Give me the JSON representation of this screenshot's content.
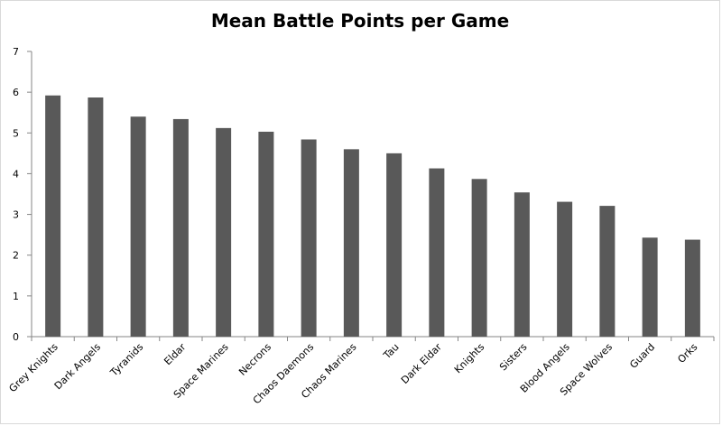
{
  "chart_data": {
    "type": "bar",
    "title": "Mean Battle Points per Game",
    "xlabel": "",
    "ylabel": "",
    "ylim": [
      0,
      7
    ],
    "yticks": [
      0,
      1,
      2,
      3,
      4,
      5,
      6,
      7
    ],
    "grid": false,
    "legend": "none",
    "bar_color": "#595959",
    "categories": [
      "Grey Knights",
      "Dark Angels",
      "Tyranids",
      "Eldar",
      "Space Marines",
      "Necrons",
      "Chaos Daemons",
      "Chaos Marines",
      "Tau",
      "Dark Eldar",
      "Knights",
      "Sisters",
      "Blood Angels",
      "Space Wolves",
      "Guard",
      "Orks"
    ],
    "values": [
      5.92,
      5.87,
      5.4,
      5.34,
      5.12,
      5.03,
      4.84,
      4.6,
      4.5,
      4.13,
      3.87,
      3.54,
      3.31,
      3.21,
      2.43,
      2.38
    ]
  }
}
